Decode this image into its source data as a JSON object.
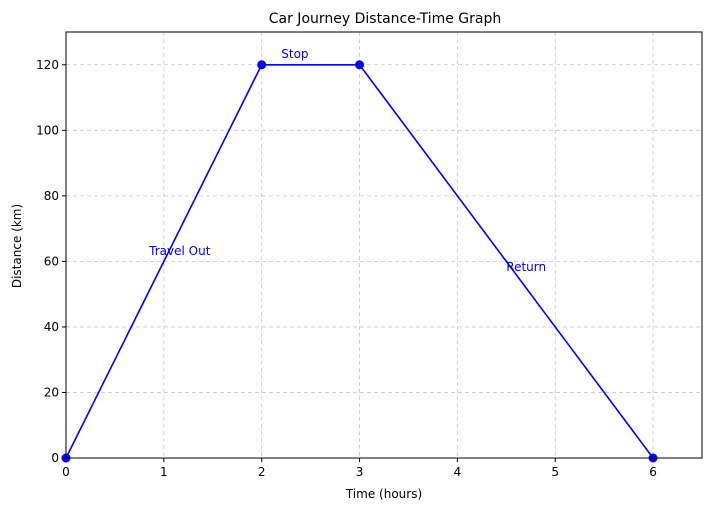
{
  "chart_data": {
    "type": "line",
    "title": "Car Journey Distance-Time Graph",
    "xlabel": "Time (hours)",
    "ylabel": "Distance (km)",
    "xlim": [
      0,
      6.5
    ],
    "ylim": [
      0,
      130
    ],
    "xticks": [
      0,
      1,
      2,
      3,
      4,
      5,
      6
    ],
    "yticks": [
      0,
      20,
      40,
      60,
      80,
      100,
      120
    ],
    "grid": true,
    "series": [
      {
        "x": [
          0,
          2,
          3,
          6
        ],
        "y": [
          0,
          120,
          120,
          0
        ],
        "color": "#0000ff",
        "marker": "circle"
      }
    ],
    "annotations": [
      {
        "text": "Travel Out",
        "x": 0.85,
        "y": 62
      },
      {
        "text": "Stop",
        "x": 2.2,
        "y": 122
      },
      {
        "text": "Return",
        "x": 4.5,
        "y": 57
      }
    ]
  }
}
